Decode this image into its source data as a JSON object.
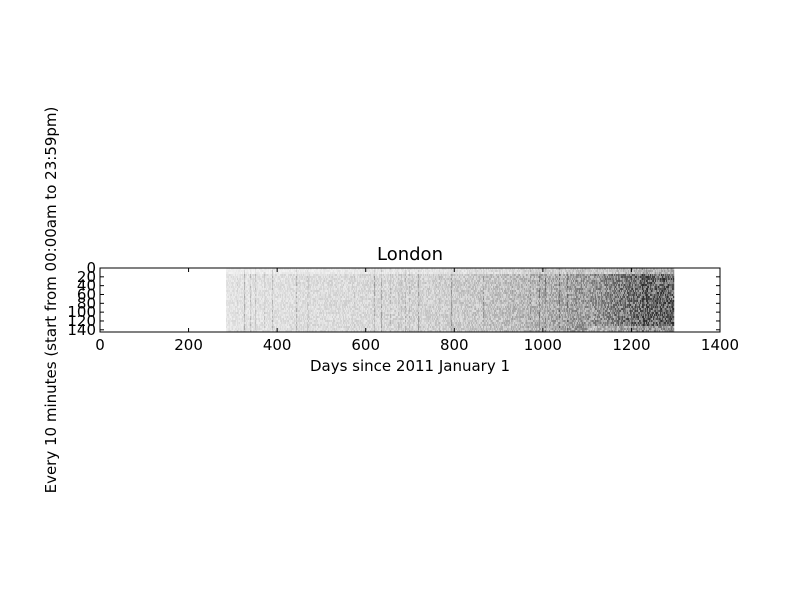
{
  "chart_data": {
    "type": "heatmap",
    "title": "London",
    "xlabel": "Days since 2011 January 1",
    "ylabel": "Every 10 minutes (start from 00:00am to 23:59pm)",
    "xlim": [
      0,
      1400
    ],
    "ylim": [
      145,
      0
    ],
    "xticks": [
      0,
      200,
      400,
      600,
      800,
      1000,
      1200,
      1400
    ],
    "xtick_labels": [
      "0",
      "200",
      "400",
      "600",
      "800",
      "1000",
      "1200",
      "1400"
    ],
    "yticks": [
      0,
      20,
      40,
      60,
      80,
      100,
      120,
      140
    ],
    "ytick_labels": [
      "0",
      "20",
      "40",
      "60",
      "80",
      "100",
      "120",
      "140"
    ],
    "colormap": "greys",
    "grid": false,
    "data_extent_x": [
      285,
      1295
    ],
    "intensity_profile": [
      {
        "x": 285,
        "v": 0.12
      },
      {
        "x": 400,
        "v": 0.14
      },
      {
        "x": 600,
        "v": 0.17
      },
      {
        "x": 800,
        "v": 0.22
      },
      {
        "x": 950,
        "v": 0.3
      },
      {
        "x": 1050,
        "v": 0.38
      },
      {
        "x": 1080,
        "v": 0.45
      },
      {
        "x": 1100,
        "v": 0.42
      },
      {
        "x": 1200,
        "v": 0.62
      },
      {
        "x": 1295,
        "v": 0.7
      }
    ]
  }
}
